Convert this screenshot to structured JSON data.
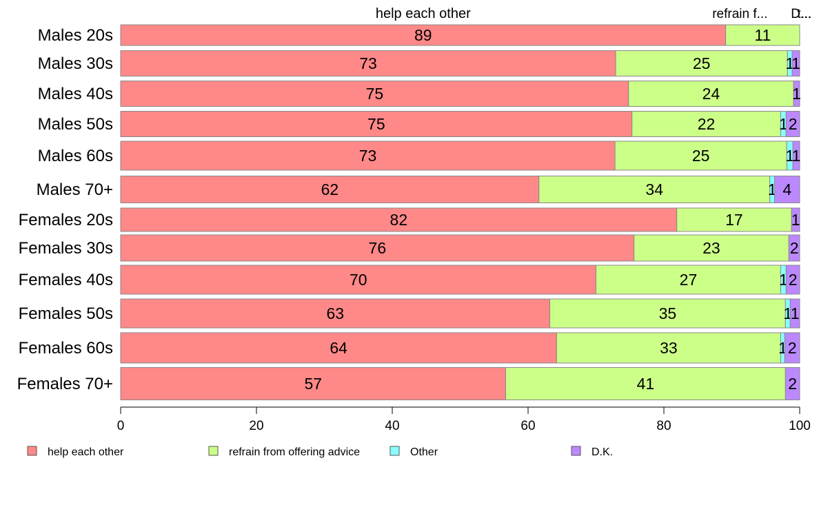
{
  "chart_data": {
    "type": "bar",
    "orientation": "horizontal",
    "stacked": true,
    "categories": [
      "Males 20s",
      "Males 30s",
      "Males 40s",
      "Males 50s",
      "Males 60s",
      "Males 70+",
      "Females 20s",
      "Females 30s",
      "Females 40s",
      "Females 50s",
      "Females 60s",
      "Females 70+"
    ],
    "series": [
      {
        "name": "help each other",
        "color": "#ff8888",
        "values": [
          89.1,
          72.9,
          74.8,
          75.3,
          72.8,
          61.6,
          81.9,
          75.6,
          70.0,
          63.2,
          64.2,
          56.7
        ],
        "labels": [
          "89",
          "73",
          "75",
          "75",
          "73",
          "62",
          "82",
          "76",
          "70",
          "63",
          "64",
          "57"
        ]
      },
      {
        "name": "refrain from offering advice",
        "color": "#ccff88",
        "values": [
          10.9,
          25.3,
          24.3,
          21.9,
          25.3,
          34.0,
          16.9,
          22.8,
          27.2,
          34.7,
          33.0,
          41.2
        ],
        "labels": [
          "11",
          "25",
          "24",
          "22",
          "25",
          "34",
          "17",
          "23",
          "27",
          "35",
          "33",
          "41"
        ]
      },
      {
        "name": "Other",
        "color": "#88ffff",
        "values": [
          0,
          0.7,
          0,
          0.8,
          0.9,
          0.7,
          0,
          0,
          0.8,
          0.7,
          0.6,
          0
        ],
        "labels": [
          "",
          "1",
          "",
          "1",
          "1",
          "1",
          "",
          "",
          "1",
          "1",
          "1",
          ""
        ]
      },
      {
        "name": "D.K.",
        "color": "#bb88ff",
        "values": [
          0,
          1.1,
          0.9,
          2.0,
          1.0,
          3.7,
          1.2,
          1.6,
          2.0,
          1.4,
          2.2,
          2.1
        ],
        "labels": [
          "",
          "1",
          "1",
          "2",
          "1",
          "4",
          "1",
          "2",
          "2",
          "1",
          "2",
          "2"
        ]
      }
    ],
    "column_headers": [
      "help each other",
      "refrain f...",
      "D...",
      "t..."
    ],
    "xlim": [
      0,
      100
    ],
    "xticks": [
      "0",
      "20",
      "40",
      "60",
      "80",
      "100"
    ],
    "grid": false,
    "legend_position": "bottom"
  }
}
